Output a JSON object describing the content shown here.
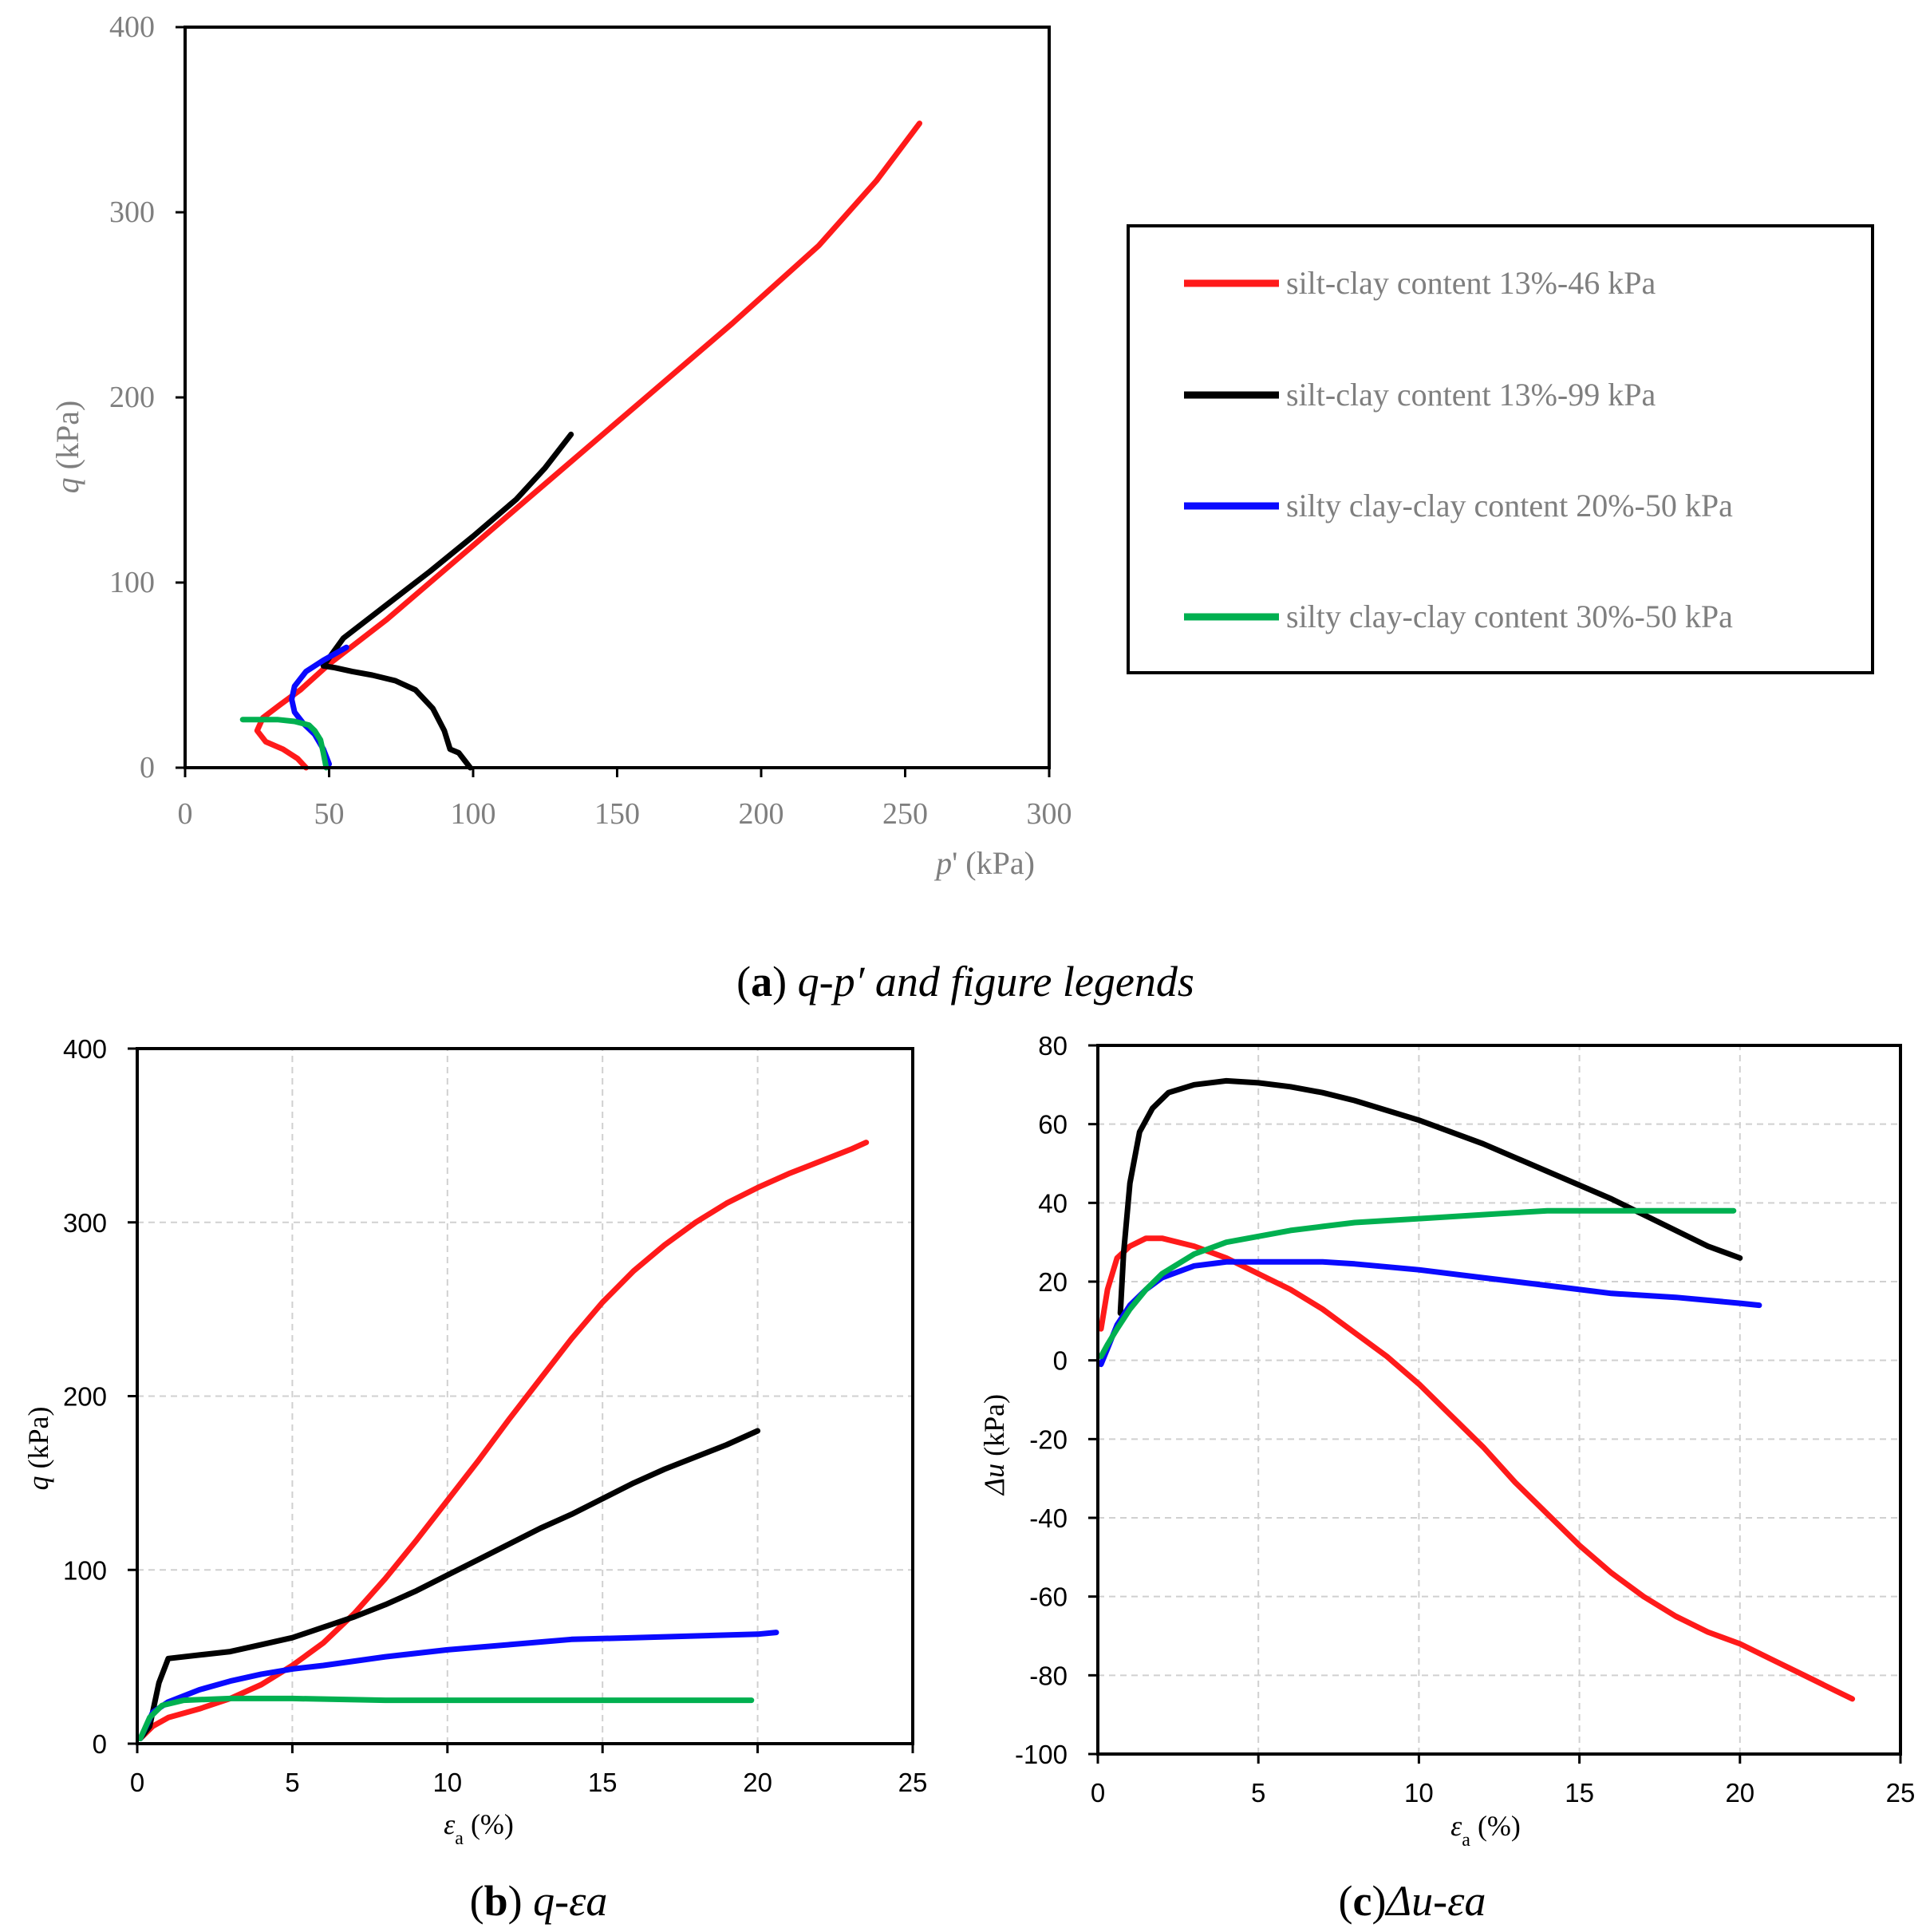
{
  "colors": {
    "red": "#ff1a1a",
    "black": "#000000",
    "blue": "#0a0aff",
    "green": "#00b050",
    "grid": "#d0d0d0",
    "axis_gray": "#7f7f7f"
  },
  "legend": [
    {
      "label": "silt-clay content 13%-46 kPa",
      "color": "#ff1a1a"
    },
    {
      "label": "silt-clay content 13%-99 kPa",
      "color": "#000000"
    },
    {
      "label": "silty clay-clay content 20%-50 kPa",
      "color": "#0a0aff"
    },
    {
      "label": "silty clay-clay content 30%-50 kPa",
      "color": "#00b050"
    }
  ],
  "captions": {
    "a_letter": "a",
    "a_title": "q-p′ and figure legends",
    "b_letter": "b",
    "b_title": "q-εa",
    "c_letter": "c",
    "c_title": "Δu-εa"
  },
  "chart_data": [
    {
      "id": "a",
      "type": "line",
      "title": "q-p′",
      "xlabel": "p' (kPa)",
      "ylabel": "q (kPa)",
      "xlim": [
        0,
        300
      ],
      "ylim": [
        0,
        400
      ],
      "xticks": [
        0,
        50,
        100,
        150,
        200,
        250,
        300
      ],
      "yticks": [
        0,
        100,
        200,
        300,
        400
      ],
      "grid": false,
      "series": [
        {
          "name": "silt-clay content 13%-46 kPa",
          "color": "#ff1a1a",
          "x": [
            42,
            39,
            34,
            28,
            25,
            27,
            33,
            40,
            50,
            70,
            100,
            130,
            160,
            190,
            220,
            240,
            255
          ],
          "y": [
            0,
            5,
            10,
            14,
            20,
            27,
            34,
            42,
            56,
            80,
            120,
            160,
            200,
            240,
            282,
            317,
            348
          ]
        },
        {
          "name": "silt-clay content 13%-99 kPa",
          "color": "#000000",
          "x": [
            99,
            97,
            95,
            92,
            90,
            86,
            80,
            73,
            65,
            58,
            52,
            48,
            55,
            70,
            85,
            100,
            115,
            125,
            134
          ],
          "y": [
            0,
            4,
            8,
            10,
            20,
            32,
            42,
            47,
            50,
            52,
            54,
            55,
            70,
            88,
            106,
            125,
            145,
            162,
            180
          ]
        },
        {
          "name": "silty clay-clay content 20%-50 kPa",
          "color": "#0a0aff",
          "x": [
            50,
            48,
            45,
            41,
            38,
            37,
            38,
            42,
            48,
            56
          ],
          "y": [
            2,
            10,
            18,
            24,
            30,
            37,
            44,
            52,
            58,
            65
          ]
        },
        {
          "name": "silty clay-clay content 30%-50 kPa",
          "color": "#00b050",
          "x": [
            49,
            48,
            47,
            45,
            43,
            38,
            32,
            26,
            20
          ],
          "y": [
            0,
            8,
            15,
            20,
            23,
            25,
            26,
            26,
            26
          ]
        }
      ]
    },
    {
      "id": "b",
      "type": "line",
      "title": "q-εa",
      "xlabel": "εa (%)",
      "ylabel": "q (kPa)",
      "xlim": [
        0,
        25
      ],
      "ylim": [
        0,
        400
      ],
      "xticks": [
        0,
        5,
        10,
        15,
        20,
        25
      ],
      "yticks": [
        0,
        100,
        200,
        300,
        400
      ],
      "grid": true,
      "series": [
        {
          "name": "silt-clay content 13%-46 kPa",
          "color": "#ff1a1a",
          "x": [
            0.1,
            0.5,
            1,
            2,
            3,
            4,
            5,
            6,
            7,
            8,
            9,
            10,
            11,
            12,
            13,
            14,
            15,
            16,
            17,
            18,
            19,
            20,
            21,
            22,
            23,
            23.5
          ],
          "y": [
            3,
            10,
            15,
            20,
            26,
            34,
            45,
            58,
            75,
            95,
            117,
            140,
            163,
            187,
            210,
            233,
            254,
            272,
            287,
            300,
            311,
            320,
            328,
            335,
            342,
            346
          ]
        },
        {
          "name": "silt-clay content 13%-99 kPa",
          "color": "#000000",
          "x": [
            0.1,
            0.4,
            0.7,
            1,
            2,
            3,
            4,
            5,
            6,
            7,
            8,
            9,
            10,
            11,
            12,
            13,
            14,
            15,
            16,
            17,
            18,
            19,
            20
          ],
          "y": [
            3,
            10,
            35,
            49,
            51,
            53,
            57,
            61,
            67,
            73,
            80,
            88,
            97,
            106,
            115,
            124,
            132,
            141,
            150,
            158,
            165,
            172,
            180
          ]
        },
        {
          "name": "silty clay-clay content 20%-50 kPa",
          "color": "#0a0aff",
          "x": [
            0.1,
            0.5,
            1,
            2,
            3,
            4,
            5,
            6,
            8,
            10,
            12,
            14,
            16,
            18,
            20,
            20.6
          ],
          "y": [
            3,
            18,
            24,
            31,
            36,
            40,
            43,
            45,
            50,
            54,
            57,
            60,
            61,
            62,
            63,
            64
          ]
        },
        {
          "name": "silty clay-clay content 30%-50 kPa",
          "color": "#00b050",
          "x": [
            0.1,
            0.4,
            0.8,
            1.5,
            3,
            5,
            8,
            10,
            13,
            16,
            19,
            19.8
          ],
          "y": [
            3,
            15,
            22,
            25,
            26,
            26,
            25,
            25,
            25,
            25,
            25,
            25
          ]
        }
      ]
    },
    {
      "id": "c",
      "type": "line",
      "title": "Δu-εa",
      "xlabel": "εa (%)",
      "ylabel": "Δu (kPa)",
      "xlim": [
        0,
        25
      ],
      "ylim": [
        -100,
        80
      ],
      "xticks": [
        0,
        5,
        10,
        15,
        20,
        25
      ],
      "yticks": [
        -100,
        -80,
        -60,
        -40,
        -20,
        0,
        20,
        40,
        60,
        80
      ],
      "grid": true,
      "series": [
        {
          "name": "silt-clay content 13%-46 kPa",
          "color": "#ff1a1a",
          "x": [
            0.1,
            0.3,
            0.6,
            1,
            1.5,
            2,
            3,
            4,
            5,
            6,
            7,
            8,
            9,
            10,
            11,
            12,
            13,
            14,
            15,
            16,
            17,
            18,
            19,
            20,
            21,
            22,
            23,
            23.5
          ],
          "y": [
            8,
            18,
            26,
            29,
            31,
            31,
            29,
            26,
            22,
            18,
            13,
            7,
            1,
            -6,
            -14,
            -22,
            -31,
            -39,
            -47,
            -54,
            -60,
            -65,
            -69,
            -72,
            -76,
            -80,
            -84,
            -86
          ]
        },
        {
          "name": "silt-clay content 13%-99 kPa",
          "color": "#000000",
          "x": [
            0.7,
            0.8,
            1,
            1.3,
            1.7,
            2.2,
            3,
            4,
            5,
            6,
            7,
            8,
            10,
            12,
            14,
            16,
            18,
            19,
            20
          ],
          "y": [
            12,
            27,
            45,
            58,
            64,
            68,
            70,
            71,
            70.5,
            69.5,
            68,
            66,
            61,
            55,
            48,
            41,
            33,
            29,
            26
          ]
        },
        {
          "name": "silty clay-clay content 20%-50 kPa",
          "color": "#0a0aff",
          "x": [
            0.1,
            0.3,
            0.6,
            1,
            1.5,
            2,
            3,
            4,
            5,
            6,
            7,
            8,
            10,
            12,
            14,
            16,
            18,
            20,
            20.6
          ],
          "y": [
            -1,
            3,
            9,
            14,
            18,
            21,
            24,
            25,
            25,
            25,
            25,
            24.5,
            23,
            21,
            19,
            17,
            16,
            14.5,
            14
          ]
        },
        {
          "name": "silty clay-clay content 30%-50 kPa",
          "color": "#00b050",
          "x": [
            0.1,
            0.3,
            0.6,
            1,
            1.5,
            2,
            3,
            4,
            5,
            6,
            7,
            8,
            10,
            12,
            14,
            16,
            18,
            19.8
          ],
          "y": [
            1,
            4,
            8,
            13,
            18,
            22,
            27,
            30,
            31.5,
            33,
            34,
            35,
            36,
            37,
            38,
            38,
            38,
            38
          ]
        }
      ]
    }
  ]
}
